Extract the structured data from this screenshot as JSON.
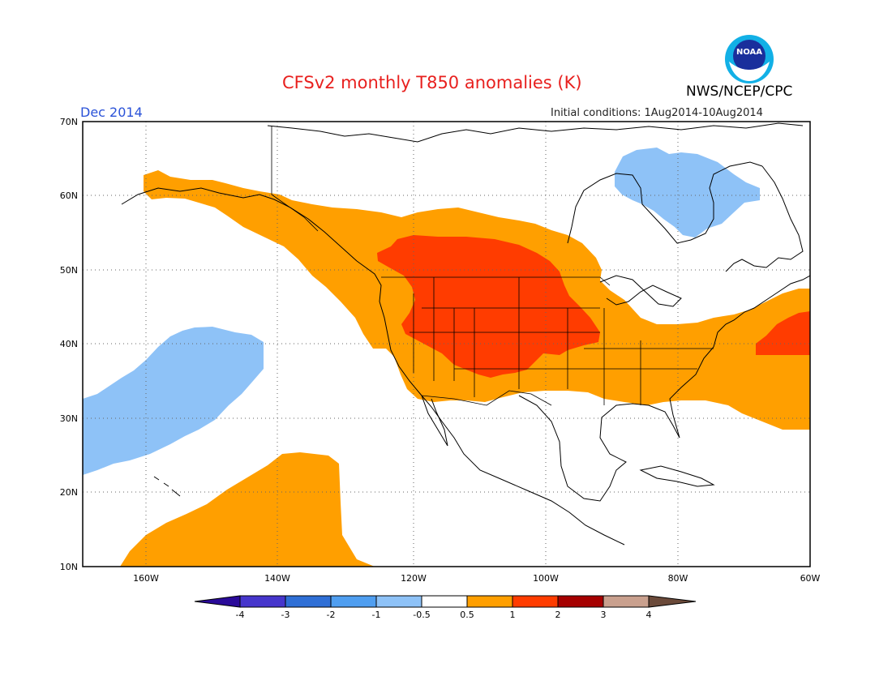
{
  "header": {
    "title": "CFSv2 monthly T850 anomalies (K)",
    "agency": "NWS/NCEP/CPC",
    "logo_text": "NOAA",
    "valid_month": "Dec 2014",
    "initial_conditions": "Initial conditions: 1Aug2014-10Aug2014"
  },
  "map": {
    "lat_labels": [
      "70N",
      "60N",
      "50N",
      "40N",
      "30N",
      "20N",
      "10N"
    ],
    "lon_labels": [
      "160W",
      "140W",
      "120W",
      "100W",
      "80W",
      "60W"
    ],
    "regions": [
      {
        "name": "warm-western-north-america",
        "category": "0.5 to 1"
      },
      {
        "name": "warm-core-northern-plains",
        "category": "1 to 2"
      },
      {
        "name": "warm-east-coast",
        "category": "1 to 2"
      },
      {
        "name": "cold-hudson-bay",
        "category": "-1 to -0.5"
      },
      {
        "name": "cold-north-pacific",
        "category": "-1 to -0.5"
      },
      {
        "name": "warm-subtropical-pacific",
        "category": "0.5 to 1"
      }
    ]
  },
  "legend": {
    "tick_labels": [
      "-4",
      "-3",
      "-2",
      "-1",
      "-0.5",
      "0.5",
      "1",
      "2",
      "3",
      "4"
    ],
    "colors": [
      "#2a0a99",
      "#4636cc",
      "#2f6fd6",
      "#4f9ef0",
      "#8ec2f7",
      "#ffffff",
      "#ff9f00",
      "#ff3c00",
      "#a50000",
      "#c9a08e",
      "#6b4a3a"
    ]
  }
}
